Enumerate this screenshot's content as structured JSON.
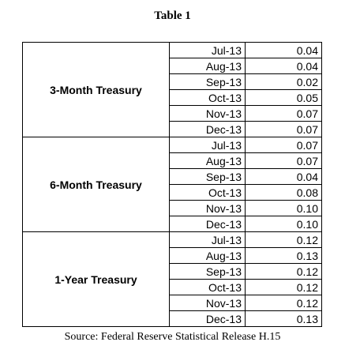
{
  "title": "Table 1",
  "groups": [
    {
      "label": "3-Month Treasury",
      "rows": [
        {
          "month": "Jul-13",
          "value": "0.04"
        },
        {
          "month": "Aug-13",
          "value": "0.04"
        },
        {
          "month": "Sep-13",
          "value": "0.02"
        },
        {
          "month": "Oct-13",
          "value": "0.05"
        },
        {
          "month": "Nov-13",
          "value": "0.07"
        },
        {
          "month": "Dec-13",
          "value": "0.07"
        }
      ]
    },
    {
      "label": "6-Month Treasury",
      "rows": [
        {
          "month": "Jul-13",
          "value": "0.07"
        },
        {
          "month": "Aug-13",
          "value": "0.07"
        },
        {
          "month": "Sep-13",
          "value": "0.04"
        },
        {
          "month": "Oct-13",
          "value": "0.08"
        },
        {
          "month": "Nov-13",
          "value": "0.10"
        },
        {
          "month": "Dec-13",
          "value": "0.10"
        }
      ]
    },
    {
      "label": "1-Year Treasury",
      "rows": [
        {
          "month": "Jul-13",
          "value": "0.12"
        },
        {
          "month": "Aug-13",
          "value": "0.13"
        },
        {
          "month": "Sep-13",
          "value": "0.12"
        },
        {
          "month": "Oct-13",
          "value": "0.12"
        },
        {
          "month": "Nov-13",
          "value": "0.12"
        },
        {
          "month": "Dec-13",
          "value": "0.13"
        }
      ]
    }
  ],
  "source": "Source: Federal Reserve Statistical Release H.15"
}
